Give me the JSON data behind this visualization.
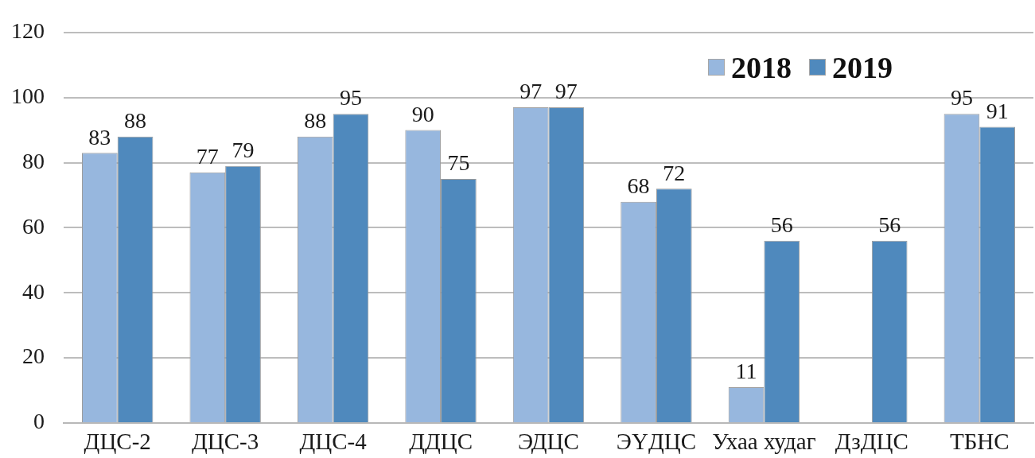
{
  "chart_data": {
    "type": "bar",
    "categories": [
      "ДЦС-2",
      "ДЦС-3",
      "ДЦС-4",
      "ДДЦС",
      "ЭДЦС",
      "ЭҮДЦС",
      "Ухаа худаг",
      "ДзДЦС",
      "ТБНС"
    ],
    "series": [
      {
        "name": "2018",
        "color": "#97b7de",
        "values": [
          83,
          77,
          88,
          90,
          97,
          68,
          11,
          null,
          95
        ]
      },
      {
        "name": "2019",
        "color": "#4f89bd",
        "values": [
          88,
          79,
          95,
          75,
          97,
          72,
          56,
          56,
          91
        ]
      }
    ],
    "ylim": [
      0,
      120
    ],
    "yticks": [
      0,
      20,
      40,
      60,
      80,
      100,
      120
    ],
    "grid": "y",
    "legend": "top right",
    "data_labels": true
  }
}
